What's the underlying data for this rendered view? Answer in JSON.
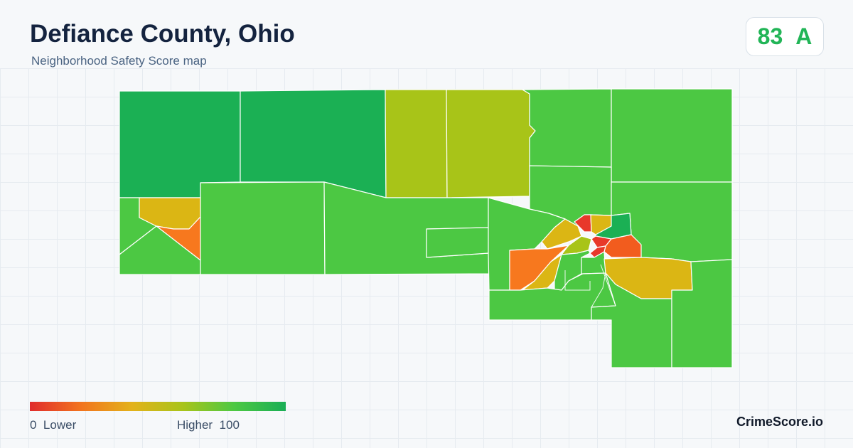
{
  "header": {
    "title": "Defiance County, Ohio",
    "subtitle": "Neighborhood Safety Score map"
  },
  "score": {
    "value": "83",
    "grade": "A",
    "color": "#22b557"
  },
  "map": {
    "colors": {
      "dark_green": "#1bb054",
      "green": "#4cc843",
      "yellow_green": "#a8c418",
      "yellow": "#dbb614",
      "orange": "#f7781e",
      "orange_red": "#f25c1e",
      "red": "#e8382a",
      "boundary": "#ffffff"
    }
  },
  "legend": {
    "low_value": "0",
    "low_label": "Lower",
    "high_label": "Higher",
    "high_value": "100",
    "gradient_colors": [
      "#e02c2c",
      "#f2741e",
      "#e3b21a",
      "#a8c41a",
      "#4cc843",
      "#19ae55"
    ]
  },
  "brand": {
    "label": "CrimeScore.io"
  }
}
